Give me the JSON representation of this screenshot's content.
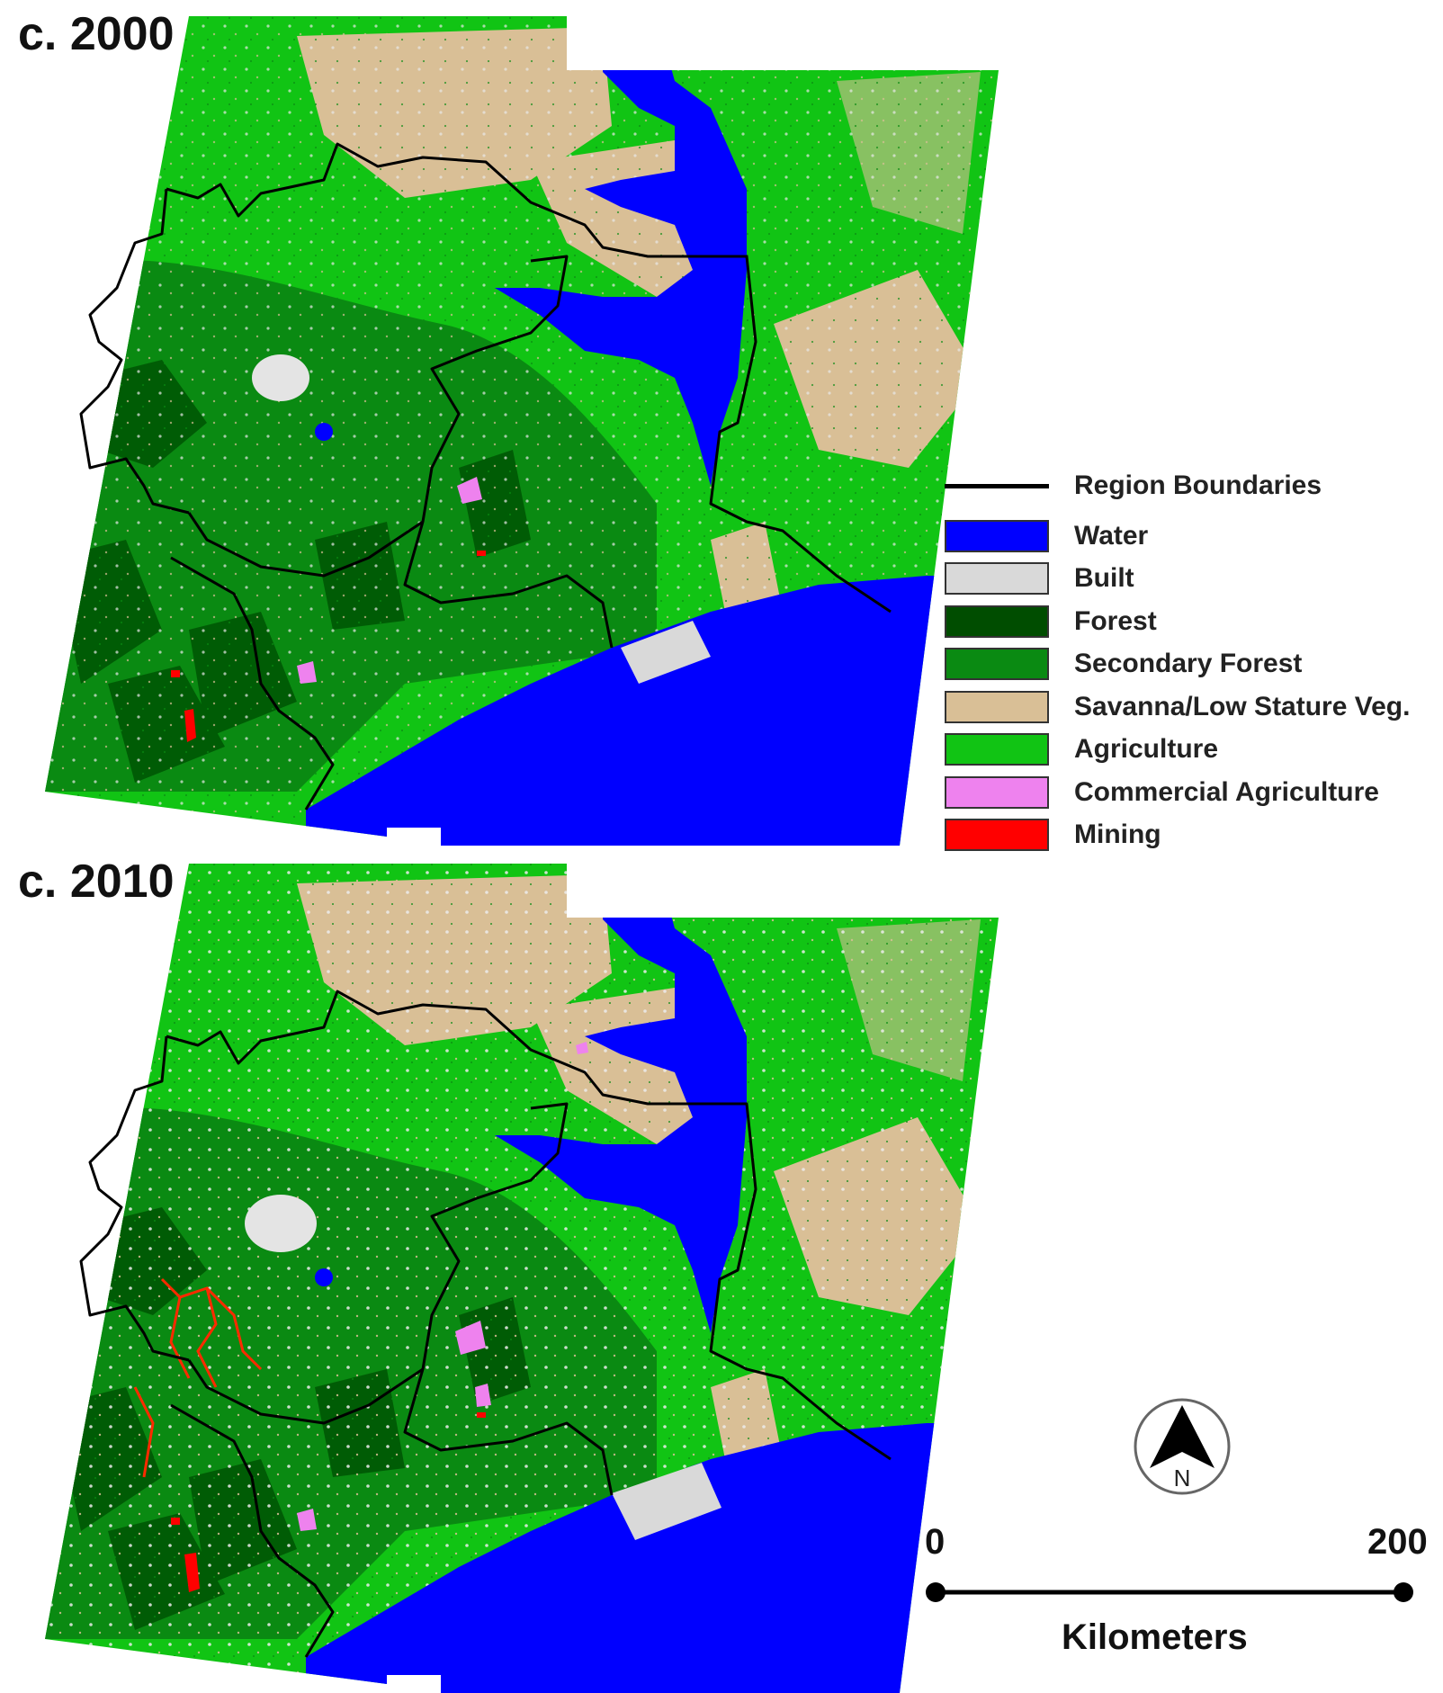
{
  "panels": [
    {
      "title": "c. 2000"
    },
    {
      "title": "c. 2010"
    }
  ],
  "legend": {
    "items": [
      {
        "label": "Region Boundaries",
        "type": "line",
        "color": "#000000"
      },
      {
        "label": "Water",
        "type": "swatch",
        "color": "#0000ff"
      },
      {
        "label": "Built",
        "type": "swatch",
        "color": "#d9d9d9"
      },
      {
        "label": "Forest",
        "type": "swatch",
        "color": "#004d00"
      },
      {
        "label": "Secondary Forest",
        "type": "swatch",
        "color": "#0a8a12"
      },
      {
        "label": "Savanna/Low Stature Veg.",
        "type": "swatch",
        "color": "#d9bf96"
      },
      {
        "label": "Agriculture",
        "type": "swatch",
        "color": "#11c414"
      },
      {
        "label": "Commercial Agriculture",
        "type": "swatch",
        "color": "#ee82ee"
      },
      {
        "label": "Mining",
        "type": "swatch",
        "color": "#ff0000"
      }
    ]
  },
  "north_arrow": {
    "label": "N",
    "icon": "north-arrow-icon"
  },
  "scale_bar": {
    "start_label": "0",
    "end_label": "200",
    "unit_label": "Kilometers"
  }
}
